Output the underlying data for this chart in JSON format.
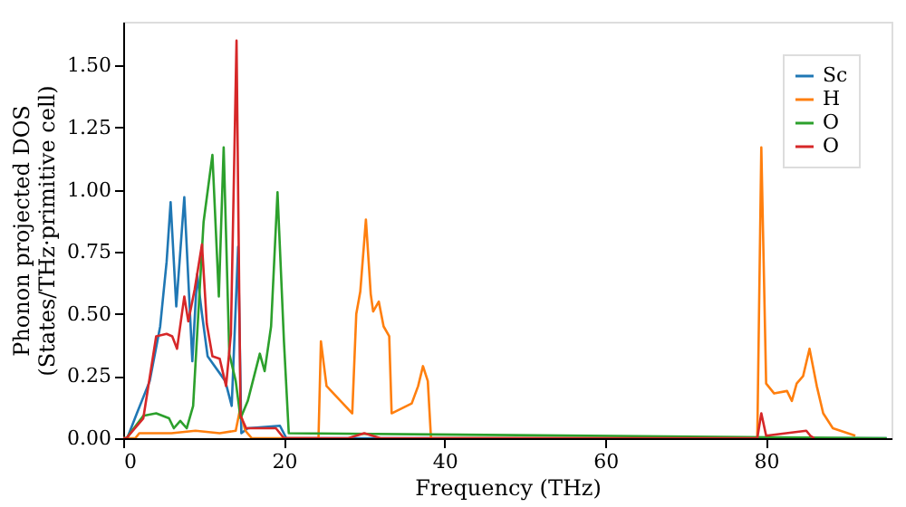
{
  "chart_data": {
    "type": "line",
    "xlabel": "Frequency (THz)",
    "ylabel": "Phonon projected DOS\n(States/THz·primitive cell)",
    "xlim": [
      0,
      95.6
    ],
    "ylim": [
      0,
      1.676
    ],
    "xticks": [
      0,
      20,
      40,
      60,
      80
    ],
    "yticks": [
      {
        "value": 0,
        "label": "0.00"
      },
      0.25,
      {
        "value": 0.5,
        "label": "0.50"
      },
      0.75,
      {
        "value": 1,
        "label": "1.00"
      },
      1.25,
      {
        "value": 1.5,
        "label": "1.50"
      }
    ],
    "grid": false,
    "legend": "top right",
    "line_style": "solid",
    "marker": "none",
    "series": [
      {
        "name": "Sc",
        "color": "#1f77b4",
        "x": [
          0,
          0.5,
          1.7,
          3.3,
          4.6,
          5.4,
          5.9,
          6.6,
          7.6,
          8.6,
          9.2,
          9.8,
          10.5,
          12.7,
          13.5,
          14.3,
          14.7,
          15.5,
          19.5,
          20.3,
          95
        ],
        "values": [
          0,
          0,
          0.1,
          0.23,
          0.45,
          0.71,
          0.95,
          0.53,
          0.97,
          0.31,
          0.66,
          0.5,
          0.33,
          0.23,
          0.13,
          0.77,
          0.02,
          0.04,
          0.05,
          0,
          0
        ]
      },
      {
        "name": "H",
        "color": "#ff7f0e",
        "x": [
          0,
          1.5,
          2,
          6,
          9,
          12,
          14,
          14.5,
          15.2,
          16,
          24.3,
          24.6,
          25.3,
          28.5,
          29,
          29.5,
          30.2,
          30.8,
          31.1,
          31.8,
          32.4,
          33.1,
          33.4,
          35.9,
          36.7,
          37.3,
          37.9,
          38.3,
          78.9,
          79.4,
          80,
          81,
          82.6,
          83.2,
          83.8,
          84.6,
          85.4,
          86.3,
          87.1,
          88.3,
          91.1
        ],
        "values": [
          0,
          0,
          0.02,
          0.02,
          0.03,
          0.02,
          0.03,
          0.11,
          0.03,
          0,
          0,
          0.39,
          0.21,
          0.1,
          0.5,
          0.59,
          0.88,
          0.58,
          0.51,
          0.55,
          0.45,
          0.41,
          0.1,
          0.14,
          0.21,
          0.29,
          0.23,
          0,
          0,
          1.17,
          0.22,
          0.18,
          0.19,
          0.15,
          0.22,
          0.25,
          0.36,
          0.21,
          0.1,
          0.04,
          0.01
        ]
      },
      {
        "name": "O",
        "color": "#2ca02c",
        "x": [
          0,
          0.4,
          2.5,
          4.1,
          5.7,
          6.3,
          7.1,
          7.9,
          8.7,
          9.5,
          10,
          11.1,
          11.9,
          12.5,
          13.2,
          14,
          14.6,
          15.5,
          17,
          17.6,
          18.4,
          19.2,
          20,
          20.6,
          95
        ],
        "values": [
          0,
          0,
          0.09,
          0.1,
          0.08,
          0.04,
          0.07,
          0.04,
          0.13,
          0.59,
          0.87,
          1.14,
          0.57,
          1.17,
          0.34,
          0.23,
          0.08,
          0.15,
          0.34,
          0.27,
          0.45,
          0.99,
          0.39,
          0.02,
          0
        ]
      },
      {
        "name": "O",
        "color": "#d62728",
        "x": [
          0,
          0.4,
          2.5,
          4.1,
          5.4,
          6.1,
          6.7,
          7.6,
          8.1,
          8.9,
          9.8,
          10.4,
          11.1,
          12,
          12.8,
          13.4,
          14.1,
          14.6,
          15.3,
          19,
          20,
          28,
          30,
          32,
          78.9,
          79.4,
          80,
          85,
          85.5,
          86
        ],
        "values": [
          0,
          0,
          0.08,
          0.41,
          0.42,
          0.41,
          0.36,
          0.57,
          0.47,
          0.6,
          0.78,
          0.46,
          0.33,
          0.32,
          0.21,
          0.42,
          1.6,
          0.09,
          0.04,
          0.04,
          0,
          0,
          0.02,
          0,
          0,
          0.1,
          0.01,
          0.03,
          0.01,
          0
        ]
      }
    ]
  }
}
